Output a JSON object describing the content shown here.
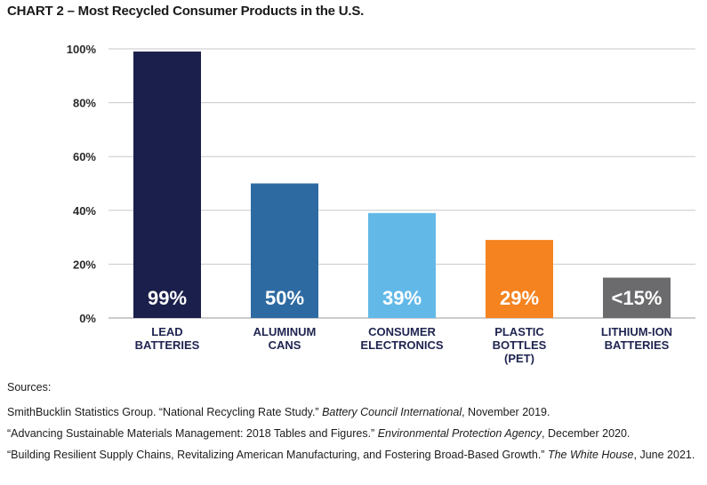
{
  "title": "CHART 2 – Most Recycled Consumer Products in the U.S.",
  "chart_data": {
    "type": "bar",
    "title": "CHART 2 – Most Recycled Consumer Products in the U.S.",
    "categories": [
      [
        "LEAD",
        "BATTERIES"
      ],
      [
        "ALUMINUM",
        "CANS"
      ],
      [
        "CONSUMER",
        "ELECTRONICS"
      ],
      [
        "PLASTIC",
        "BOTTLES",
        "(PET)"
      ],
      [
        "LITHIUM-ION",
        "BATTERIES"
      ]
    ],
    "values": [
      99,
      50,
      39,
      29,
      15
    ],
    "data_labels": [
      "99%",
      "50%",
      "39%",
      "29%",
      "<15%"
    ],
    "colors": [
      "#1b1f4b",
      "#2e6aa2",
      "#62b9e8",
      "#f5831f",
      "#6b6b6d"
    ],
    "ylim": [
      0,
      100
    ],
    "yticks": [
      0,
      20,
      40,
      60,
      80,
      100
    ],
    "ytick_labels": [
      "0%",
      "20%",
      "40%",
      "60%",
      "80%",
      "100%"
    ],
    "xlabel": "",
    "ylabel": "",
    "grid": true,
    "legend": "none"
  },
  "sources": {
    "heading": "Sources:",
    "items": [
      {
        "pre": "SmithBucklin Statistics Group. “National Recycling Rate Study.” ",
        "em": "Battery Council International",
        "post": ", November 2019."
      },
      {
        "pre": "“Advancing Sustainable Materials Management: 2018 Tables and Figures.” ",
        "em": "Environmental Protection Agency",
        "post": ", December 2020."
      },
      {
        "pre": "“Building Resilient Supply Chains, Revitalizing American Manufacturing, and Fostering Broad-Based Growth.” ",
        "em": "The White House",
        "post": ", June 2021."
      }
    ]
  }
}
